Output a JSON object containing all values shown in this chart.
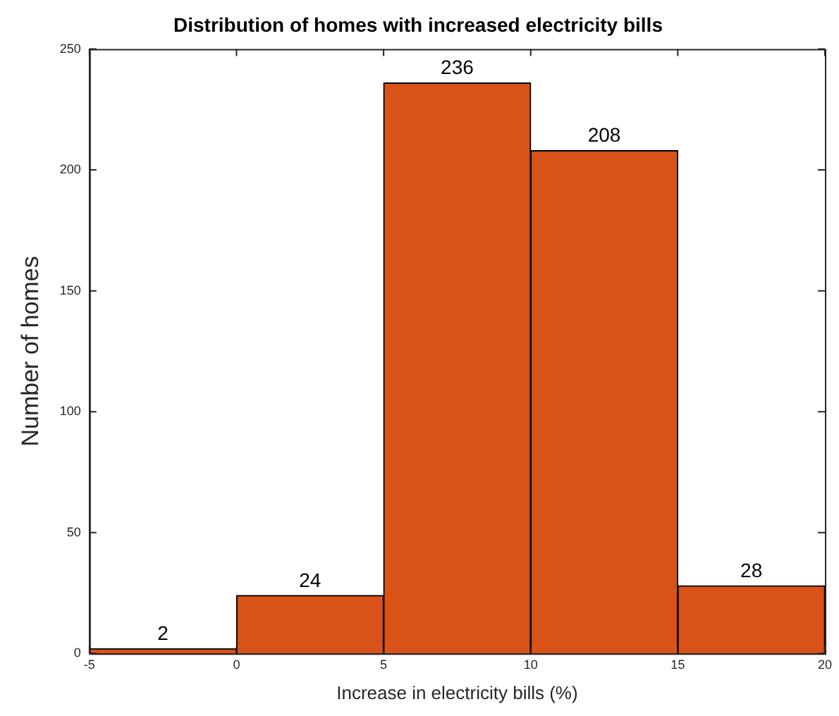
{
  "chart_data": {
    "type": "histogram",
    "title": "Distribution of homes with increased electricity bills",
    "xlabel": "Increase in electricity bills (%)",
    "ylabel": "Number of homes",
    "bins": [
      -5,
      0,
      5,
      10,
      15,
      20
    ],
    "values": [
      2,
      24,
      236,
      208,
      28
    ],
    "color": "#d95319",
    "data_labels": true,
    "xlim": [
      -5,
      20
    ],
    "xticks": [
      -5,
      0,
      5,
      10,
      15,
      20
    ],
    "ylim": [
      0,
      250
    ],
    "yticks": [
      0,
      50,
      100,
      150,
      200,
      250
    ],
    "grid": false,
    "legend": false
  }
}
